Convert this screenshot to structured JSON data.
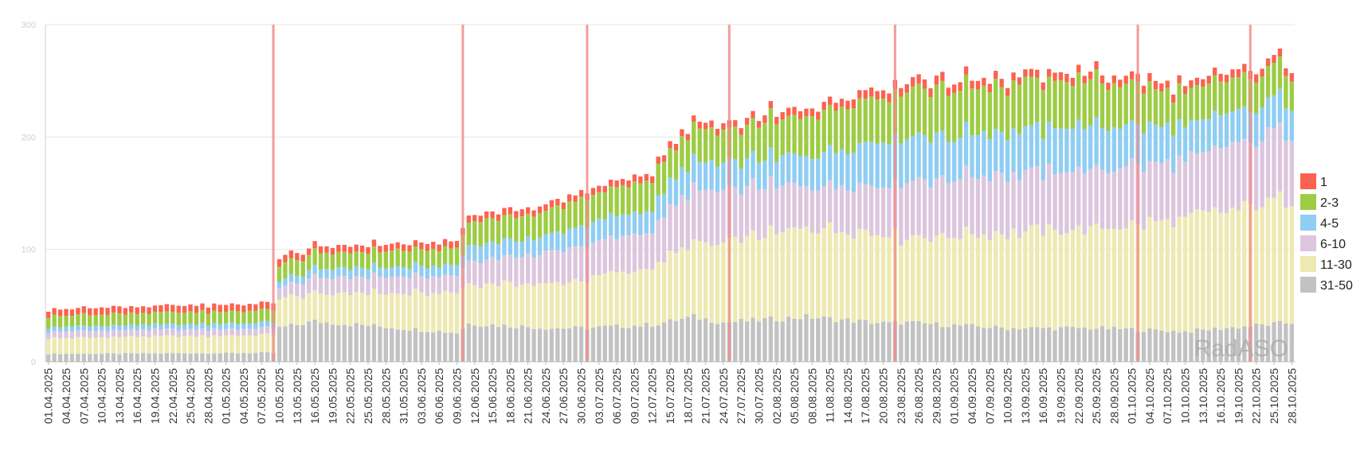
{
  "chart_data": {
    "type": "bar",
    "stacked": true,
    "ylim": [
      0,
      300
    ],
    "yticks": [
      0,
      100,
      200,
      300
    ],
    "grid": true,
    "legend_position": "right",
    "watermark": "RadASO",
    "x_tick_labels": [
      "01.04.2025",
      "04.04.2025",
      "07.04.2025",
      "10.04.2025",
      "13.04.2025",
      "16.04.2025",
      "19.04.2025",
      "22.04.2025",
      "25.04.2025",
      "28.04.2025",
      "01.05.2025",
      "04.05.2025",
      "07.05.2025",
      "10.05.2025",
      "13.05.2025",
      "16.05.2025",
      "19.05.2025",
      "22.05.2025",
      "25.05.2025",
      "28.05.2025",
      "31.05.2025",
      "03.06.2025",
      "06.06.2025",
      "09.06.2025",
      "12.06.2025",
      "15.06.2025",
      "18.06.2025",
      "21.06.2025",
      "24.06.2025",
      "27.06.2025",
      "30.06.2025",
      "03.07.2025",
      "06.07.2025",
      "09.07.2025",
      "12.07.2025",
      "15.07.2025",
      "18.07.2025",
      "21.07.2025",
      "24.07.2025",
      "27.07.2025",
      "30.07.2025",
      "02.08.2025",
      "05.08.2025",
      "08.08.2025",
      "11.08.2025",
      "14.08.2025",
      "17.08.2025",
      "20.08.2025",
      "23.08.2025",
      "26.08.2025",
      "29.08.2025",
      "01.09.2025",
      "04.09.2025",
      "07.09.2025",
      "10.09.2025",
      "13.09.2025",
      "16.09.2025",
      "19.09.2025",
      "22.09.2025",
      "25.09.2025",
      "28.09.2025",
      "01.10.2025",
      "04.10.2025",
      "07.10.2025",
      "10.10.2025",
      "13.10.2025",
      "16.10.2025",
      "19.10.2025",
      "22.10.2025",
      "25.10.2025",
      "28.10.2025"
    ],
    "series": [
      {
        "name": "31-50",
        "color": "#c2c2c2"
      },
      {
        "name": "11-30",
        "color": "#ede9b2"
      },
      {
        "name": "6-10",
        "color": "#dcc6de"
      },
      {
        "name": "4-5",
        "color": "#8fcdf3"
      },
      {
        "name": "2-3",
        "color": "#9dcc45"
      },
      {
        "name": "1",
        "color": "#fb6350"
      }
    ],
    "key_points": [
      {
        "date": "01.04.2025",
        "values": [
          7,
          14,
          6,
          4,
          10,
          6
        ]
      },
      {
        "date": "09.05.2025",
        "values": [
          8,
          16,
          6,
          5,
          11,
          6
        ]
      },
      {
        "date": "10.05.2025",
        "values": [
          30,
          25,
          10,
          6,
          14,
          7
        ]
      },
      {
        "date": "16.05.2025",
        "values": [
          36,
          25,
          14,
          8,
          14,
          6
        ]
      },
      {
        "date": "09.06.2025",
        "values": [
          26,
          36,
          15,
          9,
          15,
          6
        ]
      },
      {
        "date": "11.06.2025",
        "values": [
          34,
          36,
          20,
          14,
          21,
          6
        ]
      },
      {
        "date": "25.06.2025",
        "values": [
          30,
          40,
          28,
          15,
          22,
          6
        ]
      },
      {
        "date": "30.06.2025",
        "values": [
          30,
          42,
          30,
          18,
          24,
          6
        ]
      },
      {
        "date": "12.07.2025",
        "values": [
          33,
          52,
          33,
          20,
          27,
          6
        ]
      },
      {
        "date": "19.07.2025",
        "values": [
          40,
          65,
          48,
          26,
          28,
          6
        ]
      },
      {
        "date": "24.07.2025",
        "values": [
          35,
          70,
          48,
          24,
          28,
          6
        ]
      },
      {
        "date": "07.08.2025",
        "values": [
          40,
          80,
          38,
          26,
          36,
          7
        ]
      },
      {
        "date": "21.08.2025",
        "values": [
          34,
          80,
          44,
          40,
          40,
          8
        ]
      },
      {
        "date": "23.08.2025",
        "values": [
          35,
          75,
          50,
          38,
          42,
          8
        ]
      },
      {
        "date": "10.09.2025",
        "values": [
          30,
          85,
          52,
          38,
          42,
          7
        ]
      },
      {
        "date": "25.09.2025",
        "values": [
          30,
          88,
          52,
          40,
          40,
          7
        ]
      },
      {
        "date": "10.10.2025",
        "values": [
          27,
          100,
          52,
          30,
          30,
          7
        ]
      },
      {
        "date": "28.10.2025",
        "values": [
          35,
          110,
          62,
          28,
          28,
          7
        ]
      }
    ]
  },
  "legend": [
    {
      "label": "1",
      "color": "#fb6350"
    },
    {
      "label": "2-3",
      "color": "#9dcc45"
    },
    {
      "label": "4-5",
      "color": "#8fcdf3"
    },
    {
      "label": "6-10",
      "color": "#dcc6de"
    },
    {
      "label": "11-30",
      "color": "#ede9b2"
    },
    {
      "label": "31-50",
      "color": "#c2c2c2"
    }
  ],
  "event_markers": [
    "09.05.2025",
    "10.06.2025",
    "01.07.2025",
    "25.07.2025",
    "22.08.2025",
    "02.10.2025",
    "21.10.2025"
  ],
  "event_line_color": "#f28b8b"
}
